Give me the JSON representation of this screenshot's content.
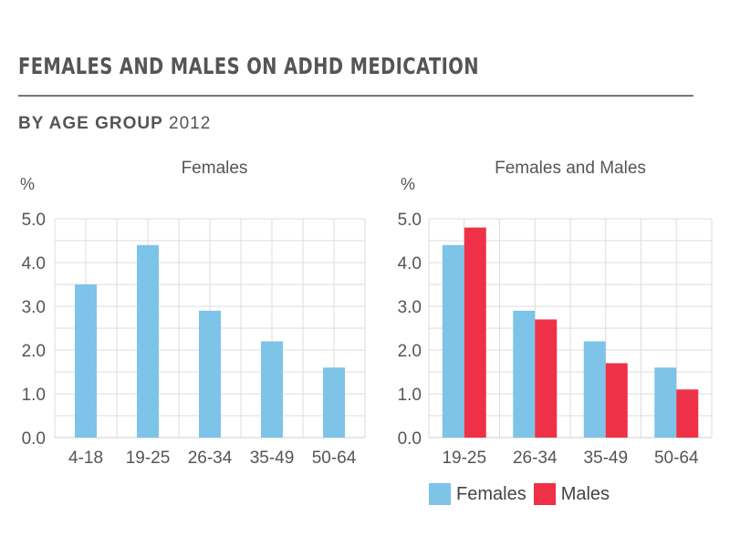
{
  "header": {
    "title": "FEMALES AND MALES ON ADHD MEDICATION",
    "subtitle_bold": "BY AGE GROUP",
    "subtitle_year": "2012"
  },
  "colors": {
    "females": "#7dc4e8",
    "males": "#ef3148",
    "grid": "#dddddd",
    "axis": "#555555"
  },
  "legend": {
    "females": "Females",
    "males": "Males"
  },
  "chart_data": [
    {
      "type": "bar",
      "title": "Females",
      "ylabel": "%",
      "ylim": [
        0,
        5
      ],
      "yticks": [
        "0.0",
        "1.0",
        "2.0",
        "3.0",
        "4.0",
        "5.0"
      ],
      "categories": [
        "4-18",
        "19-25",
        "26-34",
        "35-49",
        "50-64"
      ],
      "series": [
        {
          "name": "Females",
          "values": [
            3.5,
            4.4,
            2.9,
            2.2,
            1.6
          ]
        }
      ],
      "grid": true
    },
    {
      "type": "bar",
      "title": "Females and Males",
      "ylabel": "%",
      "ylim": [
        0,
        5
      ],
      "yticks": [
        "0.0",
        "1.0",
        "2.0",
        "3.0",
        "4.0",
        "5.0"
      ],
      "categories": [
        "19-25",
        "26-34",
        "35-49",
        "50-64"
      ],
      "series": [
        {
          "name": "Females",
          "values": [
            4.4,
            2.9,
            2.2,
            1.6
          ]
        },
        {
          "name": "Males",
          "values": [
            4.8,
            2.7,
            1.7,
            1.1
          ]
        }
      ],
      "grid": true,
      "legend": "bottom"
    }
  ]
}
